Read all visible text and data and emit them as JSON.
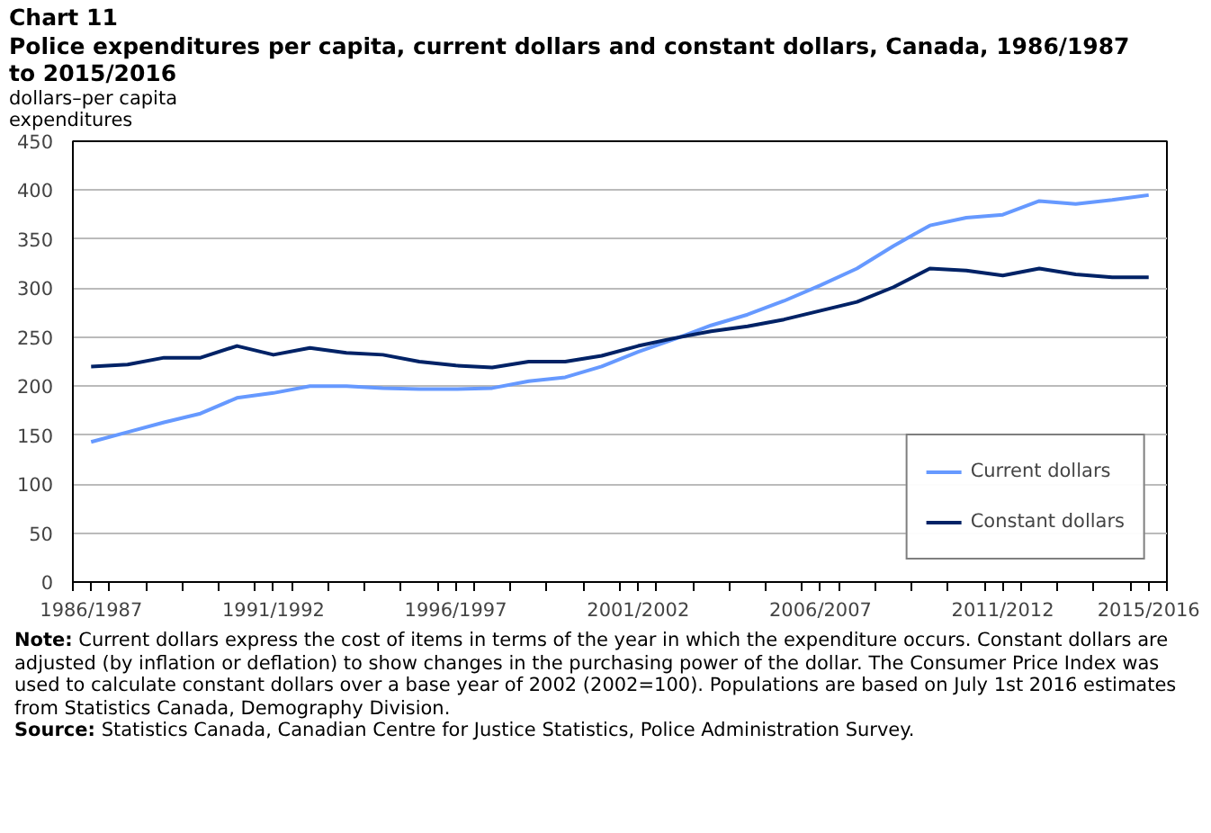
{
  "chart_data": {
    "type": "line",
    "title": "Chart 11",
    "subtitle": "Police expenditures per capita, current dollars and constant dollars, Canada, 1986/1987 to 2015/2016",
    "ylabel": "dollars–per capita expenditures",
    "categories": [
      "1986/1987",
      null,
      null,
      null,
      null,
      "1991/1992",
      null,
      null,
      null,
      null,
      "1996/1997",
      null,
      null,
      null,
      null,
      "2001/2002",
      null,
      null,
      null,
      null,
      "2006/2007",
      null,
      null,
      null,
      null,
      "2011/2012",
      null,
      null,
      null,
      "2015/2016"
    ],
    "series": [
      {
        "name": "Current dollars",
        "color": "#6699ff",
        "values": [
          143,
          153,
          163,
          172,
          188,
          193,
          200,
          200,
          198,
          197,
          197,
          198,
          205,
          209,
          220,
          235,
          248,
          262,
          273,
          287,
          303,
          320,
          343,
          364,
          372,
          375,
          389,
          386,
          390,
          395
        ]
      },
      {
        "name": "Constant dollars",
        "color": "#002266",
        "values": [
          220,
          222,
          229,
          229,
          241,
          232,
          239,
          234,
          232,
          225,
          221,
          219,
          225,
          225,
          231,
          241,
          249,
          256,
          261,
          268,
          277,
          286,
          301,
          320,
          318,
          313,
          320,
          314,
          311,
          311
        ]
      }
    ],
    "ylim": [
      0,
      450
    ],
    "yticks": [
      0,
      50,
      100,
      150,
      200,
      250,
      300,
      350,
      400,
      450
    ],
    "grid": "y",
    "legend": "bottom right",
    "line_style": "solid",
    "annotations": [
      "Note: Current dollars express the cost of items in terms of the year in which the expenditure occurs. Constant dollars are adjusted (by inflation or deflation) to show changes in the purchasing power of the dollar. The Consumer Price Index was used to calculate constant dollars over a base year of 2002 (2002=100). Populations are based on July 1st 2016 estimates from Statistics Canada, Demography Division.",
      "Source: Statistics Canada, Canadian Centre for Justice Statistics, Police Administration Survey."
    ]
  }
}
